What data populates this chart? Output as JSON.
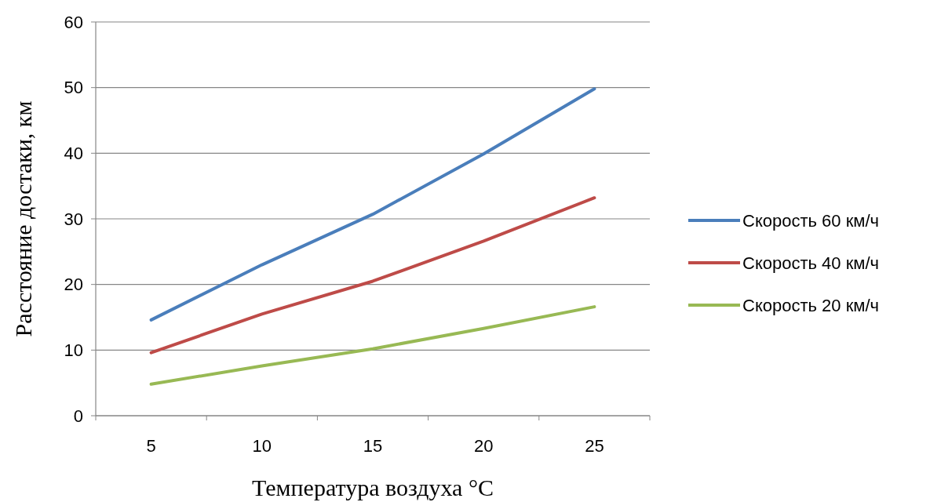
{
  "chart_data": {
    "type": "line",
    "xlabel": "Температура воздуха °C",
    "ylabel": "Расстояние достаки, км",
    "categories": [
      "5",
      "10",
      "15",
      "20",
      "25"
    ],
    "series": [
      {
        "name": "Скорость 60 км/ч",
        "color": "#4a7ebb",
        "values": [
          14.6,
          23,
          30.7,
          39.9,
          49.8
        ]
      },
      {
        "name": "Скорость 40 км/ч",
        "color": "#be4b48",
        "values": [
          9.6,
          15.5,
          20.5,
          26.6,
          33.2
        ]
      },
      {
        "name": "Скорость 20 км/ч",
        "color": "#98b954",
        "values": [
          4.8,
          7.6,
          10.2,
          13.3,
          16.6
        ]
      }
    ],
    "ylim": [
      0,
      60
    ],
    "yticks": [
      0,
      10,
      20,
      30,
      40,
      50,
      60
    ],
    "grid": "y",
    "legend": "right",
    "marker": "none",
    "line_style": "solid"
  }
}
